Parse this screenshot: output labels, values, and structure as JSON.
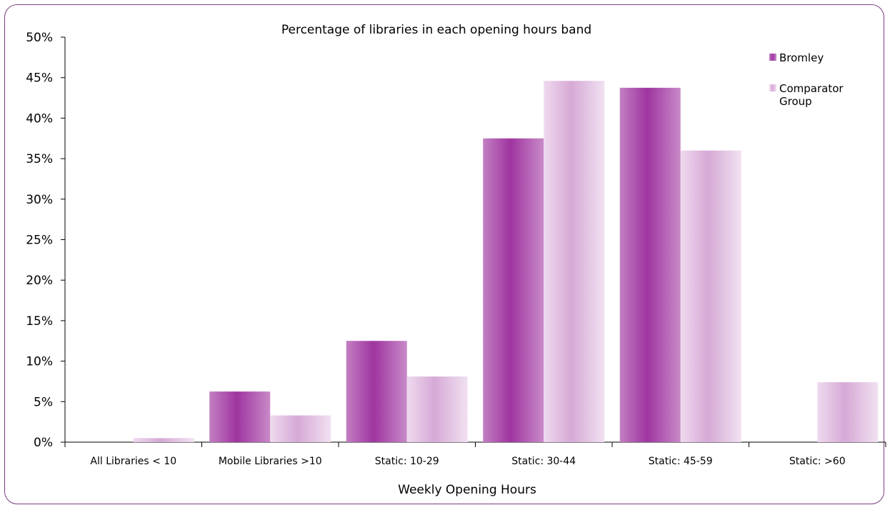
{
  "chart_data": {
    "type": "bar",
    "title": "Percentage of libraries in each opening hours band",
    "xlabel": "Weekly Opening Hours",
    "ylabel": "",
    "ylim": [
      0,
      50
    ],
    "y_tick_labels": [
      "0%",
      "5%",
      "10%",
      "15%",
      "20%",
      "25%",
      "30%",
      "35%",
      "40%",
      "45%",
      "50%"
    ],
    "y_tick_values": [
      0,
      5,
      10,
      15,
      20,
      25,
      30,
      35,
      40,
      45,
      50
    ],
    "categories": [
      "All Libraries < 10",
      "Mobile Libraries >10",
      "Static: 10-29",
      "Static: 30-44",
      "Static: 45-59",
      "Static: >60"
    ],
    "series": [
      {
        "name": "Bromley",
        "values": [
          0,
          6.25,
          12.5,
          37.5,
          43.75,
          0
        ],
        "color": "#a23ba0"
      },
      {
        "name": "Comparator Group",
        "values": [
          0.5,
          3.3,
          8.1,
          44.6,
          36.0,
          7.4
        ],
        "color": "#d9acd8"
      }
    ],
    "legend": {
      "position": "top-right",
      "entries": [
        "Bromley",
        "Comparator Group"
      ]
    },
    "grid": false
  }
}
